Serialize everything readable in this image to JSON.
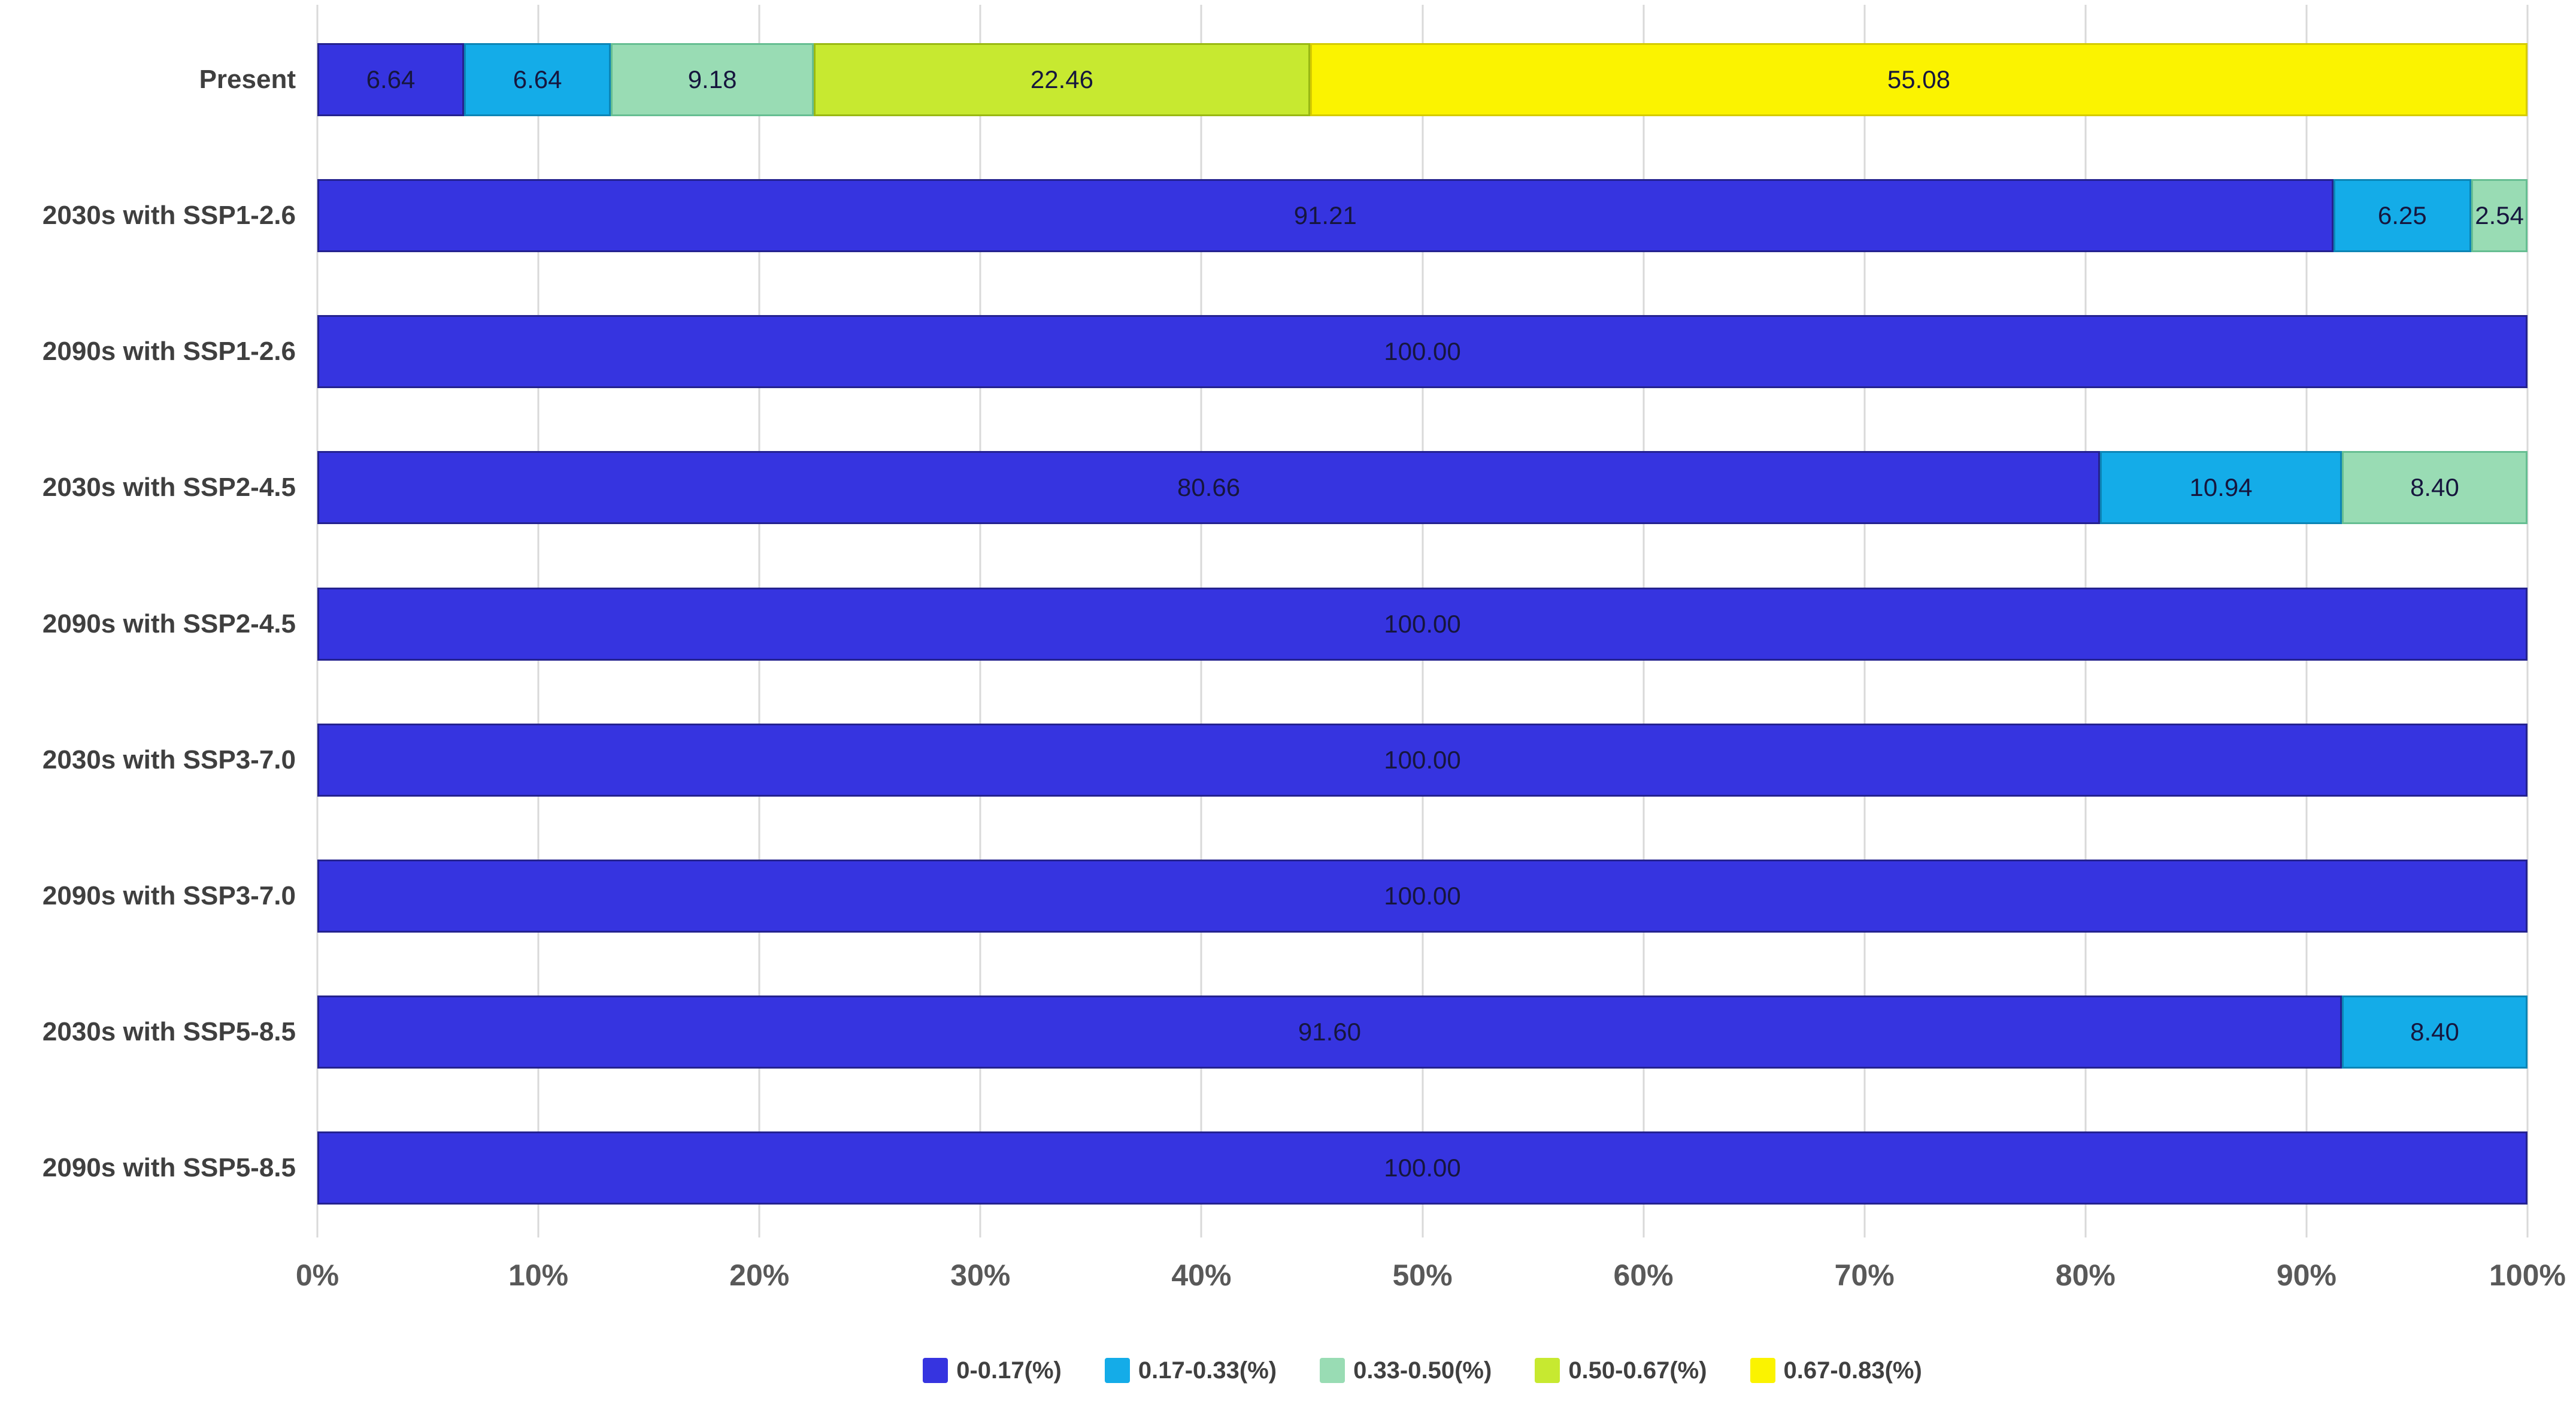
{
  "chart_data": {
    "type": "bar",
    "orientation": "horizontal",
    "stacked": true,
    "title": "",
    "xlabel": "",
    "ylabel": "",
    "xlim": [
      0,
      100
    ],
    "x_ticks": [
      "0%",
      "10%",
      "20%",
      "30%",
      "40%",
      "50%",
      "60%",
      "70%",
      "80%",
      "90%",
      "100%"
    ],
    "grid": "vertical",
    "legend_position": "bottom",
    "background": "#ffffff",
    "gridline_color": "#d9d9d9",
    "categories": [
      "Present",
      "2030s with SSP1-2.6",
      "2090s with SSP1-2.6",
      "2030s with SSP2-4.5",
      "2090s with SSP2-4.5",
      "2030s with SSP3-7.0",
      "2090s with SSP3-7.0",
      "2030s with SSP5-8.5",
      "2090s with SSP5-8.5"
    ],
    "series": [
      {
        "name": "0-0.17(%)",
        "color": "#3634e0",
        "border": "#24228f",
        "values": [
          6.64,
          91.21,
          100.0,
          80.66,
          100.0,
          100.0,
          100.0,
          91.6,
          100.0
        ],
        "labels": [
          "6.64",
          "91.21",
          "100.00",
          "80.66",
          "100.00",
          "100.00",
          "100.00",
          "91.60",
          "100.00"
        ]
      },
      {
        "name": "0.17-0.33(%)",
        "color": "#14ace8",
        "border": "#0c85b5",
        "values": [
          6.64,
          6.25,
          0,
          10.94,
          0,
          0,
          0,
          8.4,
          0
        ],
        "labels": [
          "6.64",
          "6.25",
          "",
          "10.94",
          "",
          "",
          "",
          "8.40",
          ""
        ]
      },
      {
        "name": "0.33-0.50(%)",
        "color": "#99dcb4",
        "border": "#66be92",
        "values": [
          9.18,
          2.54,
          0,
          8.4,
          0,
          0,
          0,
          0,
          0
        ],
        "labels": [
          "9.18",
          "2.54",
          "",
          "8.40",
          "",
          "",
          "",
          "",
          ""
        ]
      },
      {
        "name": "0.50-0.67(%)",
        "color": "#c7e930",
        "border": "#99b813",
        "values": [
          22.46,
          0,
          0,
          0,
          0,
          0,
          0,
          0,
          0
        ],
        "labels": [
          "22.46",
          "",
          "",
          "",
          "",
          "",
          "",
          "",
          ""
        ]
      },
      {
        "name": "0.67-0.83(%)",
        "color": "#fbf300",
        "border": "#d5cb00",
        "values": [
          55.08,
          0,
          0,
          0,
          0,
          0,
          0,
          0,
          0
        ],
        "labels": [
          "55.08",
          "",
          "",
          "",
          "",
          "",
          "",
          "",
          ""
        ]
      }
    ]
  }
}
